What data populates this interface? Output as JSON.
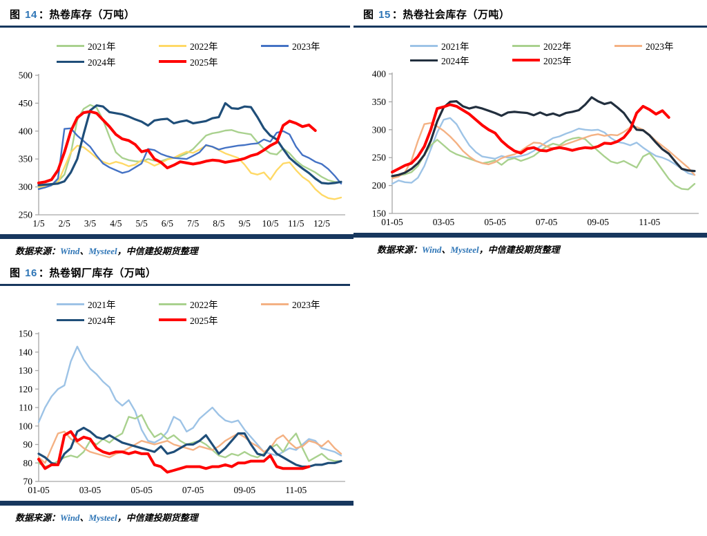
{
  "page": {
    "background": "#ffffff",
    "accent_navy": "#17375E",
    "title_number_blue": "#2E75B6"
  },
  "chart_data": [
    {
      "type": "line",
      "figure_label": {
        "prefix": "图 ",
        "number": "14",
        "rest": "：热卷库存（万吨）"
      },
      "title": "图 14：热卷库存（万吨）",
      "legend_position": "top",
      "grid": false,
      "n_points": 48,
      "ylim": [
        250,
        500
      ],
      "y_ticks": [
        250,
        300,
        350,
        400,
        450,
        500
      ],
      "x_labels": [
        "1/5",
        "2/5",
        "3/5",
        "4/5",
        "5/5",
        "6/5",
        "7/5",
        "8/5",
        "9/5",
        "10/5",
        "11/5",
        "12/5"
      ],
      "x_tick_indices": [
        0,
        4,
        8,
        12,
        16,
        20,
        24,
        28,
        32,
        36,
        40,
        44
      ],
      "series": [
        {
          "name": "2021年",
          "color": "#A9D18E",
          "width": 2.4,
          "values": [
            297,
            299,
            303,
            310,
            322,
            360,
            420,
            440,
            447,
            442,
            420,
            390,
            362,
            352,
            348,
            346,
            345,
            350,
            347,
            346,
            350,
            352,
            355,
            360,
            368,
            380,
            392,
            396,
            398,
            401,
            402,
            398,
            396,
            394,
            380,
            368,
            360,
            358,
            369,
            360,
            347,
            338,
            332,
            326,
            318,
            312,
            309,
            308
          ]
        },
        {
          "name": "2022年",
          "color": "#FFD966",
          "width": 2.4,
          "values": [
            300,
            301,
            303,
            308,
            335,
            362,
            374,
            371,
            362,
            352,
            345,
            341,
            345,
            342,
            337,
            340,
            348,
            344,
            338,
            343,
            349,
            352,
            358,
            363,
            361,
            367,
            374,
            372,
            366,
            360,
            356,
            352,
            340,
            325,
            322,
            326,
            313,
            330,
            342,
            344,
            330,
            318,
            310,
            296,
            286,
            280,
            278,
            281
          ]
        },
        {
          "name": "2023年",
          "color": "#4472C4",
          "width": 2.4,
          "values": [
            296,
            299,
            303,
            315,
            404,
            405,
            392,
            382,
            372,
            356,
            342,
            335,
            330,
            325,
            328,
            335,
            342,
            368,
            366,
            359,
            355,
            352,
            351,
            350,
            356,
            362,
            375,
            372,
            367,
            370,
            372,
            374,
            375,
            377,
            378,
            385,
            381,
            397,
            400,
            394,
            372,
            357,
            352,
            345,
            341,
            332,
            320,
            306
          ]
        },
        {
          "name": "2024年",
          "color": "#1F4E79",
          "width": 3.2,
          "values": [
            303,
            304,
            305,
            306,
            310,
            326,
            350,
            395,
            437,
            446,
            444,
            434,
            432,
            430,
            426,
            421,
            417,
            410,
            419,
            421,
            422,
            414,
            417,
            419,
            414,
            416,
            418,
            423,
            425,
            450,
            441,
            440,
            444,
            443,
            425,
            405,
            392,
            385,
            368,
            352,
            342,
            333,
            325,
            315,
            307,
            306,
            307,
            309
          ]
        },
        {
          "name": "2025年",
          "color": "#FF0000",
          "width": 4,
          "values": [
            307,
            309,
            313,
            330,
            362,
            400,
            424,
            433,
            435,
            432,
            420,
            408,
            394,
            386,
            383,
            376,
            363,
            366,
            350,
            344,
            334,
            339,
            345,
            343,
            341,
            343,
            346,
            348,
            347,
            344,
            346,
            348,
            351,
            356,
            359,
            366,
            374,
            380,
            410,
            418,
            414,
            408,
            411,
            401,
            null,
            null,
            null,
            null
          ]
        }
      ],
      "source": {
        "label": "数据来源：",
        "wind": "Wind",
        "sep1": "、",
        "mysteel": "Mysteel",
        "sep2": "，",
        "rest": "中信建投期货整理"
      }
    },
    {
      "type": "line",
      "figure_label": {
        "prefix": "图 ",
        "number": "15",
        "rest": "：热卷社会库存（万吨）"
      },
      "title": "图 15：热卷社会库存（万吨）",
      "legend_position": "top",
      "grid": false,
      "n_points": 48,
      "ylim": [
        150,
        400
      ],
      "y_ticks": [
        150,
        200,
        250,
        300,
        350,
        400
      ],
      "x_labels": [
        "01-05",
        "03-05",
        "05-05",
        "07-05",
        "09-05",
        "11-05"
      ],
      "x_tick_indices": [
        0,
        8,
        16,
        24,
        32,
        40
      ],
      "series": [
        {
          "name": "2021年",
          "color": "#9DC3E6",
          "width": 2.4,
          "values": [
            203,
            209,
            206,
            205,
            214,
            235,
            265,
            295,
            318,
            321,
            310,
            290,
            272,
            260,
            252,
            250,
            248,
            253,
            250,
            251,
            253,
            256,
            262,
            270,
            278,
            285,
            288,
            293,
            297,
            302,
            300,
            299,
            300,
            295,
            285,
            278,
            276,
            272,
            277,
            268,
            260,
            253,
            250,
            245,
            238,
            230,
            222,
            219
          ]
        },
        {
          "name": "2022年",
          "color": "#A9D18E",
          "width": 2.4,
          "values": [
            216,
            218,
            220,
            224,
            235,
            255,
            272,
            282,
            272,
            262,
            256,
            252,
            248,
            244,
            240,
            242,
            245,
            237,
            246,
            249,
            244,
            248,
            253,
            262,
            270,
            275,
            272,
            280,
            284,
            286,
            283,
            272,
            262,
            252,
            243,
            240,
            244,
            238,
            232,
            252,
            258,
            244,
            228,
            212,
            200,
            194,
            193,
            203
          ]
        },
        {
          "name": "2023年",
          "color": "#F4B183",
          "width": 2.4,
          "values": [
            213,
            216,
            224,
            245,
            280,
            310,
            312,
            306,
            298,
            288,
            276,
            262,
            252,
            244,
            240,
            238,
            242,
            249,
            253,
            256,
            262,
            270,
            277,
            276,
            270,
            266,
            270,
            274,
            278,
            282,
            286,
            290,
            292,
            289,
            291,
            290,
            296,
            304,
            305,
            300,
            291,
            280,
            271,
            262,
            252,
            242,
            232,
            219
          ]
        },
        {
          "name": "2024年",
          "color": "#222F3E",
          "width": 3.2,
          "values": [
            217,
            219,
            223,
            230,
            240,
            255,
            280,
            315,
            340,
            350,
            351,
            342,
            338,
            341,
            338,
            334,
            330,
            325,
            331,
            332,
            331,
            330,
            326,
            331,
            326,
            329,
            325,
            330,
            332,
            335,
            345,
            358,
            351,
            346,
            349,
            340,
            330,
            314,
            300,
            299,
            290,
            277,
            265,
            257,
            243,
            230,
            227,
            226
          ]
        },
        {
          "name": "2025年",
          "color": "#FF0000",
          "width": 4,
          "values": [
            224,
            230,
            236,
            240,
            252,
            270,
            300,
            338,
            341,
            345,
            342,
            335,
            328,
            318,
            308,
            300,
            294,
            280,
            270,
            262,
            258,
            266,
            268,
            263,
            262,
            266,
            268,
            266,
            263,
            266,
            268,
            267,
            270,
            276,
            275,
            279,
            286,
            300,
            330,
            342,
            336,
            328,
            334,
            322,
            null,
            null,
            null,
            null
          ]
        }
      ],
      "source": {
        "label": "数据来源：",
        "wind": "Wind",
        "sep1": "、",
        "mysteel": "Mysteel",
        "sep2": "，",
        "rest": "中信建投期货整理"
      }
    },
    {
      "type": "line",
      "figure_label": {
        "prefix": "图 ",
        "number": "16",
        "rest": "：热卷钢厂库存（万吨）"
      },
      "title": "图 16：热卷钢厂库存（万吨）",
      "legend_position": "top",
      "grid": false,
      "n_points": 48,
      "ylim": [
        70,
        150
      ],
      "y_ticks": [
        70,
        80,
        90,
        100,
        110,
        120,
        130,
        140,
        150
      ],
      "x_labels": [
        "01-05",
        "03-05",
        "05-05",
        "07-05",
        "09-05",
        "11-05"
      ],
      "x_tick_indices": [
        0,
        8,
        16,
        24,
        32,
        40
      ],
      "series": [
        {
          "name": "2021年",
          "color": "#9DC3E6",
          "width": 2.4,
          "values": [
            102,
            110,
            116,
            120,
            122,
            135,
            143,
            136,
            131,
            128,
            124,
            121,
            114,
            111,
            114,
            108,
            98,
            92,
            91,
            93,
            97,
            105,
            103,
            97,
            99,
            104,
            107,
            110,
            106,
            103,
            102,
            103,
            98,
            94,
            90,
            86,
            85,
            84,
            86,
            88,
            87,
            90,
            93,
            92,
            88,
            87,
            86,
            84
          ]
        },
        {
          "name": "2022年",
          "color": "#A9D18E",
          "width": 2.4,
          "values": [
            80,
            78,
            79,
            81,
            83,
            84,
            83,
            86,
            92,
            90,
            93,
            91,
            94,
            96,
            105,
            104,
            106,
            99,
            94,
            96,
            93,
            95,
            92,
            90,
            91,
            92,
            90,
            87,
            84,
            83,
            85,
            84,
            86,
            84,
            83,
            85,
            88,
            90,
            86,
            92,
            96,
            88,
            81,
            83,
            85,
            82,
            81,
            81
          ]
        },
        {
          "name": "2023年",
          "color": "#F4B183",
          "width": 2.4,
          "values": [
            83,
            80,
            88,
            96,
            97,
            93,
            91,
            88,
            86,
            85,
            84,
            83,
            85,
            86,
            88,
            90,
            92,
            91,
            90,
            91,
            92,
            90,
            89,
            88,
            87,
            89,
            88,
            87,
            89,
            92,
            94,
            96,
            94,
            91,
            89,
            86,
            88,
            93,
            95,
            91,
            88,
            89,
            92,
            91,
            89,
            92,
            88,
            85
          ]
        },
        {
          "name": "2024年",
          "color": "#1F4E79",
          "width": 3.2,
          "values": [
            85,
            83,
            80,
            79,
            85,
            88,
            97,
            99,
            97,
            94,
            93,
            95,
            93,
            91,
            90,
            89,
            88,
            87,
            86,
            89,
            85,
            86,
            88,
            90,
            90,
            92,
            95,
            90,
            85,
            88,
            92,
            96,
            96,
            90,
            85,
            84,
            89,
            85,
            83,
            81,
            79,
            78,
            78,
            79,
            79,
            80,
            80,
            81
          ]
        },
        {
          "name": "2025年",
          "color": "#FF0000",
          "width": 4,
          "values": [
            82,
            77,
            79,
            79,
            95,
            97,
            92,
            94,
            93,
            88,
            86,
            85,
            86,
            86,
            85,
            86,
            85,
            85,
            79,
            78,
            75,
            76,
            77,
            78,
            78,
            78,
            77,
            78,
            78,
            79,
            78,
            80,
            80,
            81,
            81,
            81,
            84,
            78,
            77,
            77,
            77,
            77,
            78,
            null,
            null,
            null,
            null,
            null
          ]
        }
      ],
      "source": {
        "label": "数据来源：",
        "wind": "Wind",
        "sep1": "、",
        "mysteel": "Mysteel",
        "sep2": "，",
        "rest": "中信建投期货整理"
      }
    }
  ]
}
